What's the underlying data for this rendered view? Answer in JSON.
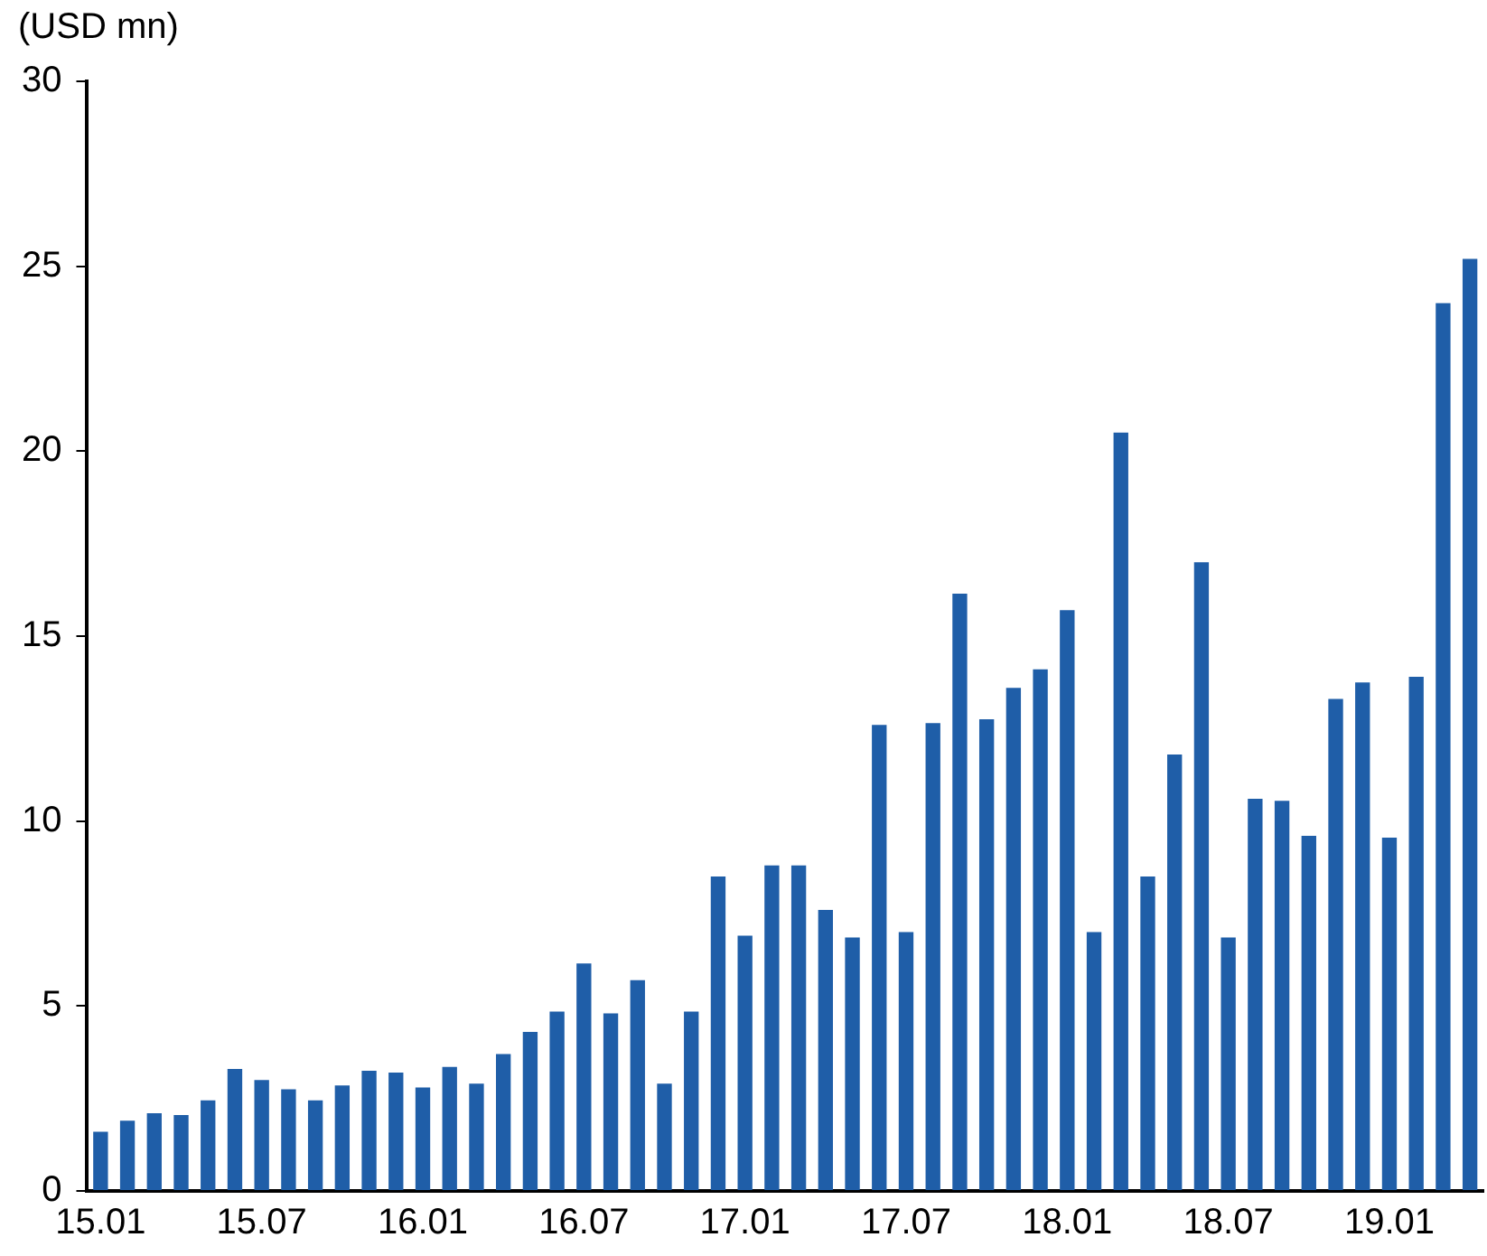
{
  "chart_data": {
    "type": "bar",
    "ylabel": "(USD mn)",
    "categories": [
      "15.01",
      null,
      null,
      null,
      null,
      null,
      "15.07",
      null,
      null,
      null,
      null,
      null,
      "16.01",
      null,
      null,
      null,
      null,
      null,
      "16.07",
      null,
      null,
      null,
      null,
      null,
      "17.01",
      null,
      null,
      null,
      null,
      null,
      "17.07",
      null,
      null,
      null,
      null,
      null,
      "18.01",
      null,
      null,
      null,
      null,
      null,
      "18.07",
      null,
      null,
      null,
      null,
      null,
      "19.01",
      null,
      null,
      null
    ],
    "values": [
      1.6,
      1.9,
      2.1,
      2.05,
      2.45,
      3.3,
      3.0,
      2.75,
      2.45,
      2.85,
      3.25,
      3.2,
      2.8,
      3.35,
      2.9,
      3.7,
      4.3,
      4.85,
      6.15,
      4.8,
      5.7,
      2.9,
      4.85,
      8.5,
      6.9,
      8.8,
      8.8,
      7.6,
      6.85,
      12.6,
      7.0,
      12.65,
      16.15,
      12.75,
      13.6,
      14.1,
      15.7,
      7.0,
      20.5,
      8.5,
      11.8,
      17.0,
      6.85,
      10.6,
      10.55,
      9.6,
      13.3,
      13.75,
      9.55,
      13.9,
      24.0,
      25.2
    ],
    "color": "#1f5ea8",
    "ylim": [
      0,
      30
    ],
    "yticks": [
      0,
      5,
      10,
      15,
      20,
      25,
      30
    ],
    "grid": false,
    "legend": false
  }
}
